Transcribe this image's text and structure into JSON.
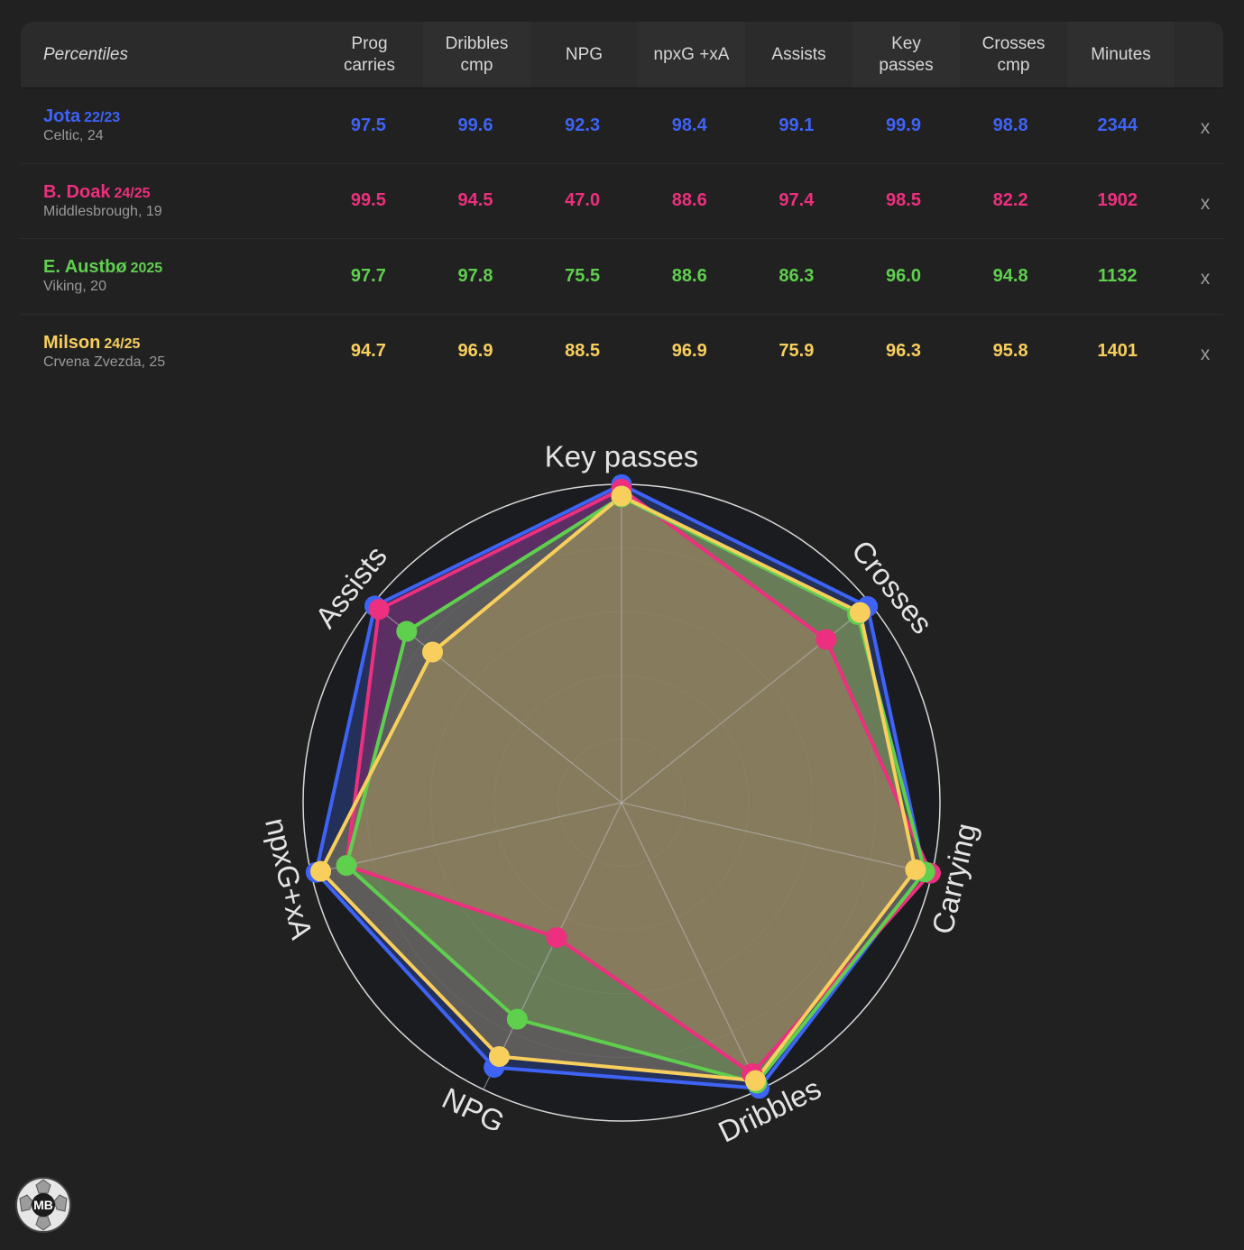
{
  "table": {
    "header_first": "Percentiles",
    "columns": [
      "Prog\ncarries",
      "Dribbles\ncmp",
      "NPG",
      "npxG +xA",
      "Assists",
      "Key\npasses",
      "Crosses\ncmp",
      "Minutes"
    ],
    "remove_label": "x",
    "players": [
      {
        "name": "Jota",
        "season": "22/23",
        "club": "Celtic, 24",
        "color": "#3e63f5",
        "values": [
          "97.5",
          "99.6",
          "92.3",
          "98.4",
          "99.1",
          "99.9",
          "98.8",
          "2344"
        ]
      },
      {
        "name": "B. Doak",
        "season": "24/25",
        "club": "Middlesbrough, 19",
        "color": "#ec2f7e",
        "values": [
          "99.5",
          "94.5",
          "47.0",
          "88.6",
          "97.4",
          "98.5",
          "82.2",
          "1902"
        ]
      },
      {
        "name": "E. Austbø",
        "season": "2025",
        "club": "Viking, 20",
        "color": "#5fcf4e",
        "values": [
          "97.7",
          "97.8",
          "75.5",
          "88.6",
          "86.3",
          "96.0",
          "94.8",
          "1132"
        ]
      },
      {
        "name": "Milson",
        "season": "24/25",
        "club": "Crvena Zvezda, 25",
        "color": "#f8cf5d",
        "values": [
          "94.7",
          "96.9",
          "88.5",
          "96.9",
          "75.9",
          "96.3",
          "95.8",
          "1401"
        ]
      }
    ]
  },
  "chart_data": {
    "type": "radar",
    "axes": [
      "Key passes",
      "Crosses",
      "Carrying",
      "Dribbles",
      "NPG",
      "npxG+xA",
      "Assists"
    ],
    "range": [
      0,
      100
    ],
    "series": [
      {
        "name": "Jota 22/23",
        "color": "#3e63f5",
        "values": [
          99.9,
          98.8,
          97.5,
          99.6,
          92.3,
          98.4,
          99.1
        ]
      },
      {
        "name": "B. Doak 24/25",
        "color": "#ec2f7e",
        "values": [
          98.5,
          82.2,
          99.5,
          94.5,
          47.0,
          88.6,
          97.4
        ]
      },
      {
        "name": "E. Austbø 2025",
        "color": "#5fcf4e",
        "values": [
          96.0,
          94.8,
          97.7,
          97.8,
          75.5,
          88.6,
          86.3
        ]
      },
      {
        "name": "Milson 24/25",
        "color": "#f8cf5d",
        "values": [
          96.3,
          95.8,
          94.7,
          96.9,
          88.5,
          96.9,
          75.9
        ]
      }
    ]
  },
  "logo": {
    "text": "MB"
  }
}
